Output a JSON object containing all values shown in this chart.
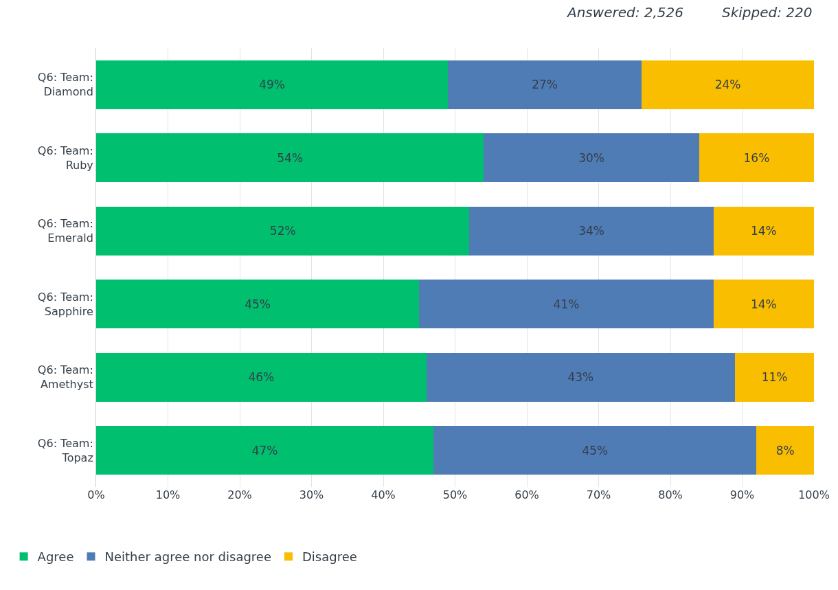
{
  "chart_data": {
    "type": "bar",
    "orientation": "horizontal",
    "stacked": true,
    "categories": [
      "Q6: Team: Diamond",
      "Q6: Team: Ruby",
      "Q6: Team: Emerald",
      "Q6: Team: Sapphire",
      "Q6: Team: Amethyst",
      "Q6: Team: Topaz"
    ],
    "series": [
      {
        "name": "Agree",
        "color": "#00bf6f",
        "values": [
          49,
          54,
          52,
          45,
          46,
          47
        ],
        "value_labels": [
          "49%",
          "54%",
          "52%",
          "45%",
          "46%",
          "47%"
        ]
      },
      {
        "name": "Neither agree nor disagree",
        "color": "#507cb6",
        "values": [
          27,
          30,
          34,
          41,
          43,
          45
        ],
        "value_labels": [
          "27%",
          "30%",
          "34%",
          "41%",
          "43%",
          "45%"
        ]
      },
      {
        "name": "Disagree",
        "color": "#f9be00",
        "values": [
          24,
          16,
          14,
          14,
          11,
          8
        ],
        "value_labels": [
          "24%",
          "16%",
          "14%",
          "14%",
          "11%",
          "8%"
        ]
      }
    ],
    "xlim": [
      0,
      100
    ],
    "xticks": [
      {
        "value": 0,
        "label": "0%"
      },
      {
        "value": 10,
        "label": "10%"
      },
      {
        "value": 20,
        "label": "20%"
      },
      {
        "value": 30,
        "label": "30%"
      },
      {
        "value": 40,
        "label": "40%"
      },
      {
        "value": 50,
        "label": "50%"
      },
      {
        "value": 60,
        "label": "60%"
      },
      {
        "value": 70,
        "label": "70%"
      },
      {
        "value": 80,
        "label": "80%"
      },
      {
        "value": 90,
        "label": "90%"
      },
      {
        "value": 100,
        "label": "100%"
      }
    ],
    "grid": "x",
    "legend": "bottom left",
    "annotations": [
      "Answered: 2,526",
      "Skipped: 220"
    ]
  }
}
